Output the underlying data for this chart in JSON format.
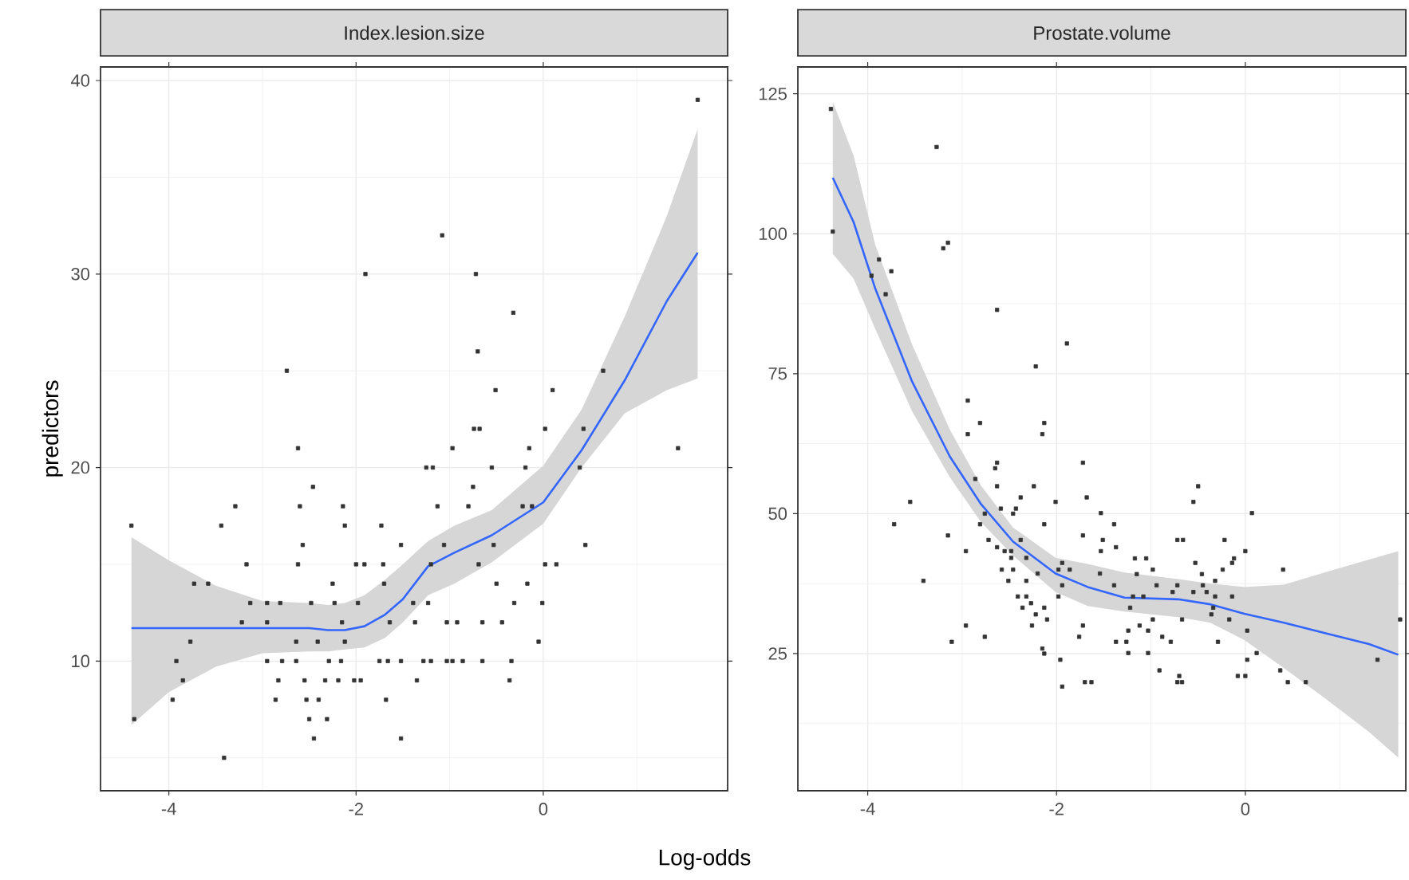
{
  "chart_data": [
    {
      "type": "scatter",
      "title": "Index.lesion.size",
      "xlabel": "Log-odds",
      "ylabel": "predictors",
      "xlim": [
        -4.73,
        1.97
      ],
      "ylim": [
        3.3,
        40.7
      ],
      "xticks": [
        -4,
        -2,
        0
      ],
      "yticks": [
        10,
        20,
        30,
        40
      ],
      "grid": true,
      "series": [
        {
          "marker": "square",
          "color": "#333333",
          "x": [
            -4.4,
            -4.37,
            -3.96,
            -3.92,
            -3.85,
            -3.77,
            -3.73,
            -3.58,
            -3.44,
            -3.41,
            -3.29,
            -3.22,
            -3.17,
            -3.13,
            -2.95,
            -2.95,
            -2.95,
            -2.86,
            -2.83,
            -2.81,
            -2.79,
            -2.74,
            -2.64,
            -2.64,
            -2.62,
            -2.62,
            -2.6,
            -2.57,
            -2.55,
            -2.53,
            -2.5,
            -2.48,
            -2.46,
            -2.45,
            -2.41,
            -2.4,
            -2.33,
            -2.31,
            -2.29,
            -2.25,
            -2.23,
            -2.19,
            -2.16,
            -2.15,
            -2.14,
            -2.12,
            -2.12,
            -2.02,
            -2.0,
            -1.98,
            -1.95,
            -1.91,
            -1.9,
            -1.73,
            -1.71,
            -1.7,
            -1.75,
            -1.68,
            -1.66,
            -1.64,
            -1.52,
            -1.52,
            -1.52,
            -1.08,
            -0.72,
            -0.32,
            -0.7,
            -0.51,
            0.1,
            0.64,
            -0.74,
            -0.68,
            0.02,
            0.43,
            -0.97,
            -0.15,
            1.44,
            -1.25,
            -1.18,
            -0.55,
            -0.19,
            0.39,
            -0.75,
            -1.13,
            -0.8,
            -0.22,
            -0.12,
            -1.06,
            -0.53,
            0.45,
            -1.2,
            -0.69,
            0.02,
            0.14,
            -0.5,
            -0.17,
            -1.39,
            -1.23,
            -0.31,
            -0.01,
            -1.37,
            -1.03,
            -0.92,
            -0.65,
            -0.44,
            -0.05,
            -1.28,
            -1.2,
            -1.03,
            -0.97,
            -0.86,
            -0.65,
            -0.34,
            -1.35,
            -0.36,
            1.65
          ],
          "values": [
            17,
            7,
            8,
            10,
            9,
            11,
            14,
            14,
            17,
            5,
            18,
            12,
            15,
            13,
            13,
            12,
            10,
            8,
            9,
            13,
            10,
            25,
            10,
            11,
            21,
            15,
            18,
            16,
            9,
            8,
            7,
            13,
            19,
            6,
            11,
            8,
            9,
            7,
            10,
            14,
            13,
            9,
            10,
            12,
            18,
            17,
            11,
            9,
            15,
            13,
            9,
            15,
            30,
            17,
            15,
            14,
            10,
            8,
            10,
            12,
            16,
            10,
            6,
            32,
            30,
            28,
            26,
            24,
            24,
            25,
            22,
            22,
            22,
            22,
            21,
            21,
            21,
            20,
            20,
            20,
            20,
            20,
            19,
            18,
            18,
            18,
            18,
            16,
            16,
            16,
            15,
            15,
            15,
            15,
            14,
            14,
            13,
            13,
            13,
            13,
            12,
            12,
            12,
            12,
            12,
            11,
            10,
            10,
            10,
            10,
            10,
            10,
            10,
            9,
            9,
            39
          ]
        },
        {
          "type": "line",
          "marker": "none",
          "color": "#3366ff",
          "x": [
            -4.4,
            -4.0,
            -3.5,
            -3.0,
            -2.5,
            -2.3,
            -2.12,
            -1.91,
            -1.69,
            -1.5,
            -1.23,
            -0.95,
            -0.55,
            0,
            0.41,
            0.87,
            1.32,
            1.65
          ],
          "values": [
            11.7,
            11.7,
            11.7,
            11.7,
            11.7,
            11.6,
            11.6,
            11.8,
            12.4,
            13.2,
            14.9,
            15.6,
            16.5,
            18.2,
            20.9,
            24.5,
            28.6,
            31.1
          ],
          "lower": [
            6.7,
            8.4,
            9.7,
            10.4,
            10.5,
            10.5,
            10.6,
            10.7,
            11.2,
            12.0,
            13.4,
            14.0,
            15.1,
            17.1,
            20.0,
            22.8,
            24.0,
            24.6
          ],
          "upper": [
            16.4,
            15.2,
            13.9,
            13.1,
            13.0,
            12.9,
            13.0,
            13.4,
            14.2,
            15.0,
            16.2,
            17.0,
            17.8,
            20.1,
            23.0,
            27.8,
            33.0,
            37.5
          ]
        }
      ]
    },
    {
      "type": "scatter",
      "title": "Prostate.volume",
      "xlim": [
        -4.74,
        1.7
      ],
      "ylim": [
        0.5,
        129.8
      ],
      "xticks": [
        -4,
        -2,
        0
      ],
      "yticks": [
        25,
        50,
        75,
        100,
        125
      ],
      "grid": true,
      "series": [
        {
          "marker": "square",
          "color": "#333333",
          "x": [
            -4.39,
            -4.37,
            -3.88,
            -3.96,
            -3.75,
            -3.81,
            -3.27,
            -3.2,
            -3.15,
            -2.63,
            -1.89,
            -2.22,
            -2.94,
            -2.81,
            -2.94,
            -2.13,
            -2.15,
            -1.72,
            -2.63,
            -2.65,
            -2.63,
            -2.86,
            -2.24,
            -2.38,
            -3.55,
            -1.68,
            -2.01,
            -2.43,
            -2.59,
            -2.46,
            -2.76,
            -1.53,
            -3.72,
            -2.81,
            -2.13,
            -3.15,
            -1.72,
            -1.51,
            -2.72,
            -2.38,
            -2.96,
            -2.63,
            -2.55,
            -2.48,
            -1.53,
            -2.48,
            -2.32,
            -1.94,
            -2.58,
            -2.46,
            -1.86,
            -2.2,
            -1.54,
            -1.98,
            -2.51,
            -2.32,
            -1.94,
            -3.41,
            -2.41,
            -2.32,
            -1.98,
            -2.27,
            -2.36,
            -2.13,
            -2.22,
            -2.1,
            -2.26,
            -2.96,
            -1.72,
            -1.76,
            -2.76,
            -3.11,
            -2.15,
            -2.13,
            -1.96,
            -1.7,
            -1.63,
            -1.94,
            -0.5,
            -0.55,
            0.07,
            -1.39,
            -0.72,
            -0.66,
            -0.22,
            -1.37,
            0.0,
            -1.17,
            -1.05,
            -0.12,
            -0.53,
            -0.14,
            -0.98,
            -0.24,
            0.4,
            -1.15,
            -0.46,
            -0.32,
            -1.39,
            -0.94,
            -0.72,
            -0.45,
            -0.77,
            -0.55,
            -0.41,
            -0.32,
            -0.14,
            -1.19,
            -1.08,
            -1.22,
            -0.34,
            -0.36,
            -0.98,
            -0.67,
            -0.17,
            1.64,
            -1.12,
            -1.03,
            0.02,
            -1.24,
            -0.88,
            -1.37,
            -1.26,
            -0.79,
            -0.29,
            -1.24,
            -1.03,
            0.12,
            0.02,
            1.4,
            -0.91,
            0.37,
            -0.7,
            -0.72,
            -0.67,
            -0.08,
            0.0,
            0.45,
            0.64
          ],
          "values": [
            122.3,
            100.4,
            95.4,
            92.5,
            93.3,
            89.2,
            115.5,
            97.4,
            98.4,
            86.4,
            80.4,
            76.3,
            70.2,
            66.2,
            64.2,
            66.2,
            64.2,
            59.1,
            59.1,
            58.1,
            54.9,
            56.2,
            54.9,
            52.9,
            52.1,
            52.9,
            52.1,
            50.9,
            50.9,
            50,
            50,
            50.1,
            48.1,
            48.1,
            48.1,
            46.1,
            46.1,
            45.3,
            45.3,
            45.3,
            43.3,
            44,
            43.3,
            43.3,
            43.3,
            42.1,
            42.1,
            41.2,
            40,
            40,
            40,
            39.3,
            39.3,
            40,
            38,
            38,
            37.2,
            38,
            35.2,
            35.2,
            35.2,
            34,
            33.2,
            33.2,
            32,
            31.1,
            30,
            30,
            30,
            28,
            28,
            27.1,
            25.9,
            25,
            23.9,
            19.9,
            19.9,
            19.1,
            54.9,
            52.1,
            50.1,
            48.1,
            45.3,
            45.3,
            45.3,
            44,
            43.3,
            42,
            42,
            42,
            41.2,
            41.2,
            40,
            40,
            40,
            39.2,
            39.2,
            38,
            37.2,
            37.2,
            37.2,
            37.2,
            36,
            36,
            36,
            35.2,
            35.2,
            35.2,
            35.2,
            33.2,
            33.2,
            32,
            31.1,
            31.1,
            31.1,
            31.1,
            30,
            29.1,
            29.1,
            29.1,
            28,
            27.1,
            27.1,
            27.1,
            27.1,
            25.1,
            25.1,
            25.1,
            23.9,
            23.9,
            22,
            22,
            21,
            19.9,
            19.9,
            21,
            21,
            19.9,
            19.9
          ]
        },
        {
          "type": "line",
          "marker": "none",
          "color": "#3366ff",
          "x": [
            -4.37,
            -4.15,
            -3.92,
            -3.53,
            -3.13,
            -2.8,
            -2.46,
            -2.01,
            -1.67,
            -1.28,
            -0.71,
            -0.37,
            -0.01,
            0.41,
            0.86,
            1.31,
            1.62
          ],
          "values": [
            110,
            102.1,
            90.2,
            73.6,
            60.2,
            51.7,
            45,
            39.3,
            36.9,
            35,
            34.7,
            33.8,
            32.1,
            30.5,
            28.6,
            26.7,
            24.8
          ],
          "lower": [
            96.4,
            92,
            83,
            68.3,
            56.5,
            48.5,
            42.5,
            36,
            33.5,
            32.5,
            31.5,
            30.5,
            27.4,
            22.4,
            16.8,
            11,
            6.4
          ],
          "upper": [
            123.6,
            114,
            98,
            80.2,
            65,
            55,
            47.5,
            42.1,
            41,
            39.5,
            38.3,
            37.5,
            36.9,
            37.3,
            39.6,
            41.8,
            43.3
          ]
        }
      ]
    }
  ]
}
